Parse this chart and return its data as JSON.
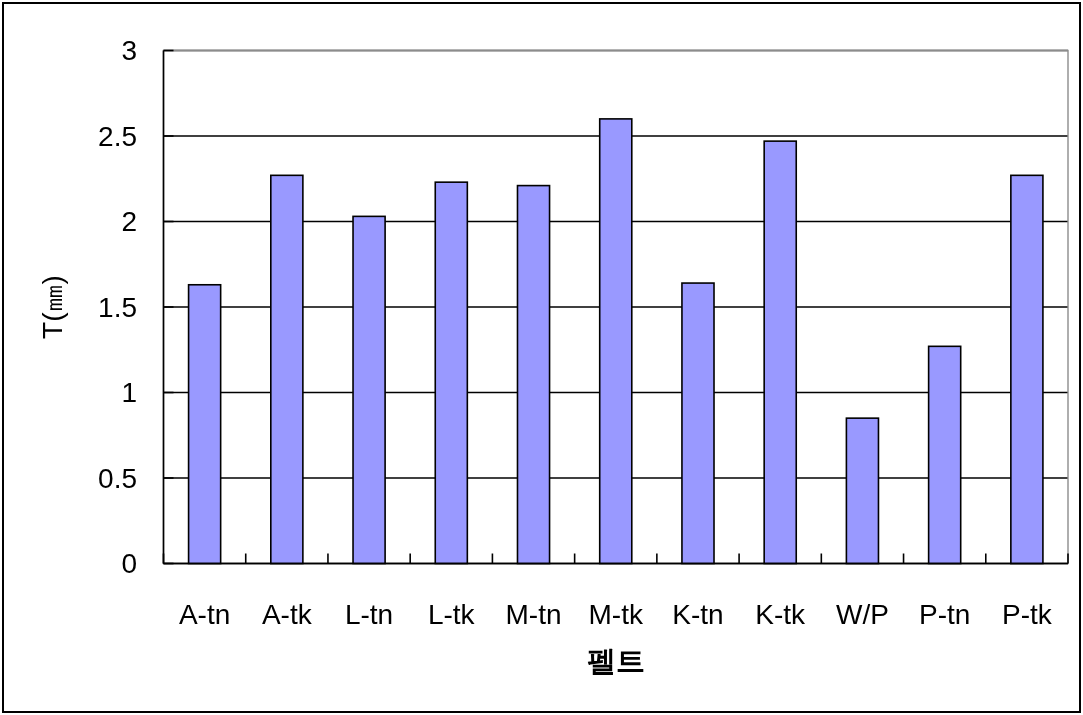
{
  "chart_data": {
    "type": "bar",
    "xlabel": "펠트",
    "ylabel": "T(㎜)",
    "categories": [
      "A-tn",
      "A-tk",
      "L-tn",
      "L-tk",
      "M-tn",
      "M-tk",
      "K-tn",
      "K-tk",
      "W/P",
      "P-tn",
      "P-tk"
    ],
    "values": [
      1.63,
      2.27,
      2.03,
      2.23,
      2.21,
      2.6,
      1.64,
      2.47,
      0.85,
      1.27,
      2.27
    ],
    "color": "#9999ff",
    "ylim": [
      0,
      3
    ],
    "yticks": [
      0,
      0.5,
      1,
      1.5,
      2,
      2.5,
      3
    ],
    "grid": "y"
  }
}
